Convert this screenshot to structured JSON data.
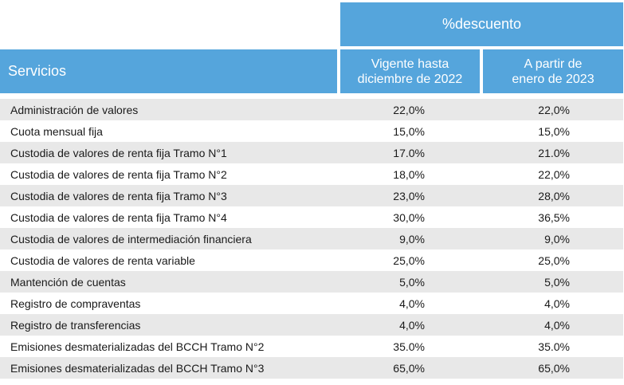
{
  "header": {
    "group_label": "%descuento",
    "services_label": "Servicios",
    "col1_line1": "Vigente hasta",
    "col1_line2": "diciembre de 2022",
    "col2_line1": "A partir de",
    "col2_line2": "enero de 2023"
  },
  "rows": [
    {
      "name": "Administración de valores",
      "v2022": "22,0%",
      "v2023": "22,0%"
    },
    {
      "name": "Cuota mensual fija",
      "v2022": "15,0%",
      "v2023": "15,0%"
    },
    {
      "name": "Custodia de valores de renta fija Tramo N°1",
      "v2022": "17.0%",
      "v2023": "21.0%"
    },
    {
      "name": "Custodia de valores de renta fija Tramo N°2",
      "v2022": "18,0%",
      "v2023": "22,0%"
    },
    {
      "name": "Custodia de valores de renta fija Tramo N°3",
      "v2022": "23,0%",
      "v2023": "28,0%"
    },
    {
      "name": "Custodia de valores de renta fija Tramo N°4",
      "v2022": "30,0%",
      "v2023": "36,5%"
    },
    {
      "name": "Custodia de valores de intermediación financiera",
      "v2022": "9,0%",
      "v2023": "9,0%"
    },
    {
      "name": "Custodia de valores de renta variable",
      "v2022": "25,0%",
      "v2023": "25,0%"
    },
    {
      "name": "Mantención de cuentas",
      "v2022": "5,0%",
      "v2023": "5,0%"
    },
    {
      "name": "Registro de compraventas",
      "v2022": "4,0%",
      "v2023": "4,0%"
    },
    {
      "name": "Registro de transferencias",
      "v2022": "4,0%",
      "v2023": "4,0%"
    },
    {
      "name": "Emisiones desmaterializadas del BCCH Tramo N°2",
      "v2022": "35.0%",
      "v2023": "35.0%"
    },
    {
      "name": "Emisiones desmaterializadas del BCCH Tramo N°3",
      "v2022": "65,0%",
      "v2023": "65,0%"
    }
  ]
}
